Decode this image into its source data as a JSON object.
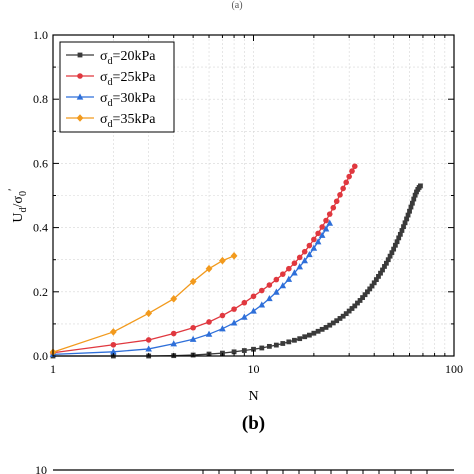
{
  "panel": {
    "top_stub": "(a)",
    "label": "(b)",
    "bottom_tick": "10"
  },
  "chart_data": {
    "type": "line",
    "title": "",
    "xlabel": "N",
    "ylabel": "Ud/σ0′",
    "x_scale": "log",
    "xlim": [
      1,
      100
    ],
    "ylim": [
      0,
      1.0
    ],
    "x_ticks": [
      1,
      10,
      100
    ],
    "x_tick_labels": [
      "1",
      "10",
      "100"
    ],
    "y_ticks": [
      0.0,
      0.2,
      0.4,
      0.6,
      0.8,
      1.0
    ],
    "y_tick_labels": [
      "0.0",
      "0.2",
      "0.4",
      "0.6",
      "0.8",
      "1.0"
    ],
    "grid": true,
    "legend_position": "top-left",
    "series": [
      {
        "name": "σd=20kPa",
        "legend_sym": "σ",
        "legend_sub": "d",
        "legend_val": "=20kPa",
        "color": "#3a3a3a",
        "marker": "square",
        "x": [
          1,
          2,
          3,
          4,
          5,
          6,
          7,
          8,
          9,
          10,
          11,
          12,
          13,
          14,
          15,
          16,
          17,
          18,
          19,
          20,
          21,
          22,
          23,
          24,
          25,
          26,
          27,
          28,
          29,
          30,
          31,
          32,
          33,
          34,
          35,
          36,
          37,
          38,
          39,
          40,
          41,
          42,
          43,
          44,
          45,
          46,
          47,
          48,
          49,
          50,
          51,
          52,
          53,
          54,
          55,
          56,
          57,
          58,
          59,
          60,
          61,
          62,
          63,
          64,
          65,
          66,
          67,
          68
        ],
        "y": [
          0.0,
          0.0,
          0.0,
          0.001,
          0.003,
          0.006,
          0.009,
          0.013,
          0.017,
          0.021,
          0.025,
          0.03,
          0.034,
          0.039,
          0.044,
          0.049,
          0.054,
          0.06,
          0.065,
          0.071,
          0.077,
          0.083,
          0.089,
          0.096,
          0.103,
          0.11,
          0.117,
          0.124,
          0.132,
          0.14,
          0.148,
          0.156,
          0.165,
          0.173,
          0.182,
          0.191,
          0.2,
          0.209,
          0.218,
          0.228,
          0.238,
          0.248,
          0.258,
          0.268,
          0.279,
          0.289,
          0.3,
          0.311,
          0.322,
          0.333,
          0.345,
          0.356,
          0.368,
          0.379,
          0.391,
          0.403,
          0.415,
          0.427,
          0.439,
          0.451,
          0.464,
          0.476,
          0.489,
          0.501,
          0.511,
          0.519,
          0.525,
          0.53
        ]
      },
      {
        "name": "σd=25kPa",
        "legend_sym": "σ",
        "legend_sub": "d",
        "legend_val": "=25kPa",
        "color": "#e0383f",
        "marker": "circle",
        "x": [
          1,
          2,
          3,
          4,
          5,
          6,
          7,
          8,
          9,
          10,
          11,
          12,
          13,
          14,
          15,
          16,
          17,
          18,
          19,
          20,
          21,
          22,
          23,
          24,
          25,
          26,
          27,
          28,
          29,
          30,
          31,
          32
        ],
        "y": [
          0.01,
          0.035,
          0.05,
          0.07,
          0.088,
          0.106,
          0.126,
          0.146,
          0.166,
          0.186,
          0.204,
          0.221,
          0.238,
          0.255,
          0.272,
          0.289,
          0.307,
          0.325,
          0.344,
          0.363,
          0.382,
          0.402,
          0.422,
          0.442,
          0.462,
          0.482,
          0.502,
          0.522,
          0.541,
          0.559,
          0.576,
          0.591
        ]
      },
      {
        "name": "σd=30kPa",
        "legend_sym": "σ",
        "legend_sub": "d",
        "legend_val": "=30kPa",
        "color": "#2e6fd9",
        "marker": "triangle",
        "x": [
          1,
          2,
          3,
          4,
          5,
          6,
          7,
          8,
          9,
          10,
          11,
          12,
          13,
          14,
          15,
          16,
          17,
          18,
          19,
          20,
          21,
          22,
          23,
          24
        ],
        "y": [
          0.005,
          0.013,
          0.022,
          0.038,
          0.052,
          0.068,
          0.085,
          0.103,
          0.121,
          0.14,
          0.159,
          0.179,
          0.199,
          0.219,
          0.239,
          0.259,
          0.278,
          0.297,
          0.316,
          0.336,
          0.356,
          0.376,
          0.396,
          0.414
        ]
      },
      {
        "name": "σd=35kPa",
        "legend_sym": "σ",
        "legend_sub": "d",
        "legend_val": "=35kPa",
        "color": "#f29a1d",
        "marker": "diamond",
        "x": [
          1,
          2,
          3,
          4,
          5,
          6,
          7,
          8
        ],
        "y": [
          0.012,
          0.075,
          0.133,
          0.178,
          0.232,
          0.272,
          0.297,
          0.312
        ]
      }
    ]
  }
}
